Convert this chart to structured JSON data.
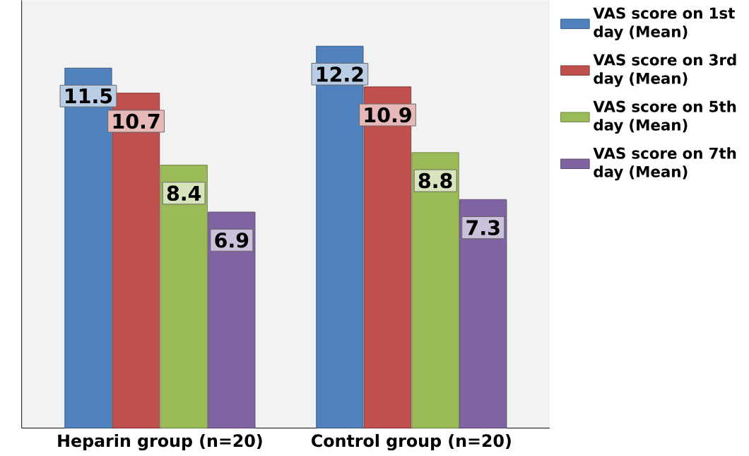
{
  "chart_data": {
    "type": "bar",
    "categories": [
      "Heparin group (n=20)",
      "Control group (n=20)"
    ],
    "series": [
      {
        "name": "VAS score on 1st day (Mean)",
        "color": "#4f81bd",
        "values": [
          11.5,
          12.2
        ]
      },
      {
        "name": "VAS score on 3rd day (Mean)",
        "color": "#c0504d",
        "values": [
          10.7,
          10.9
        ]
      },
      {
        "name": "VAS score on 5th day (Mean)",
        "color": "#9bbb59",
        "values": [
          8.4,
          8.8
        ]
      },
      {
        "name": "VAS score on 7th day (Mean)",
        "color": "#8064a2",
        "values": [
          6.9,
          7.3
        ]
      }
    ],
    "data_labels": true,
    "legend": "top right"
  }
}
